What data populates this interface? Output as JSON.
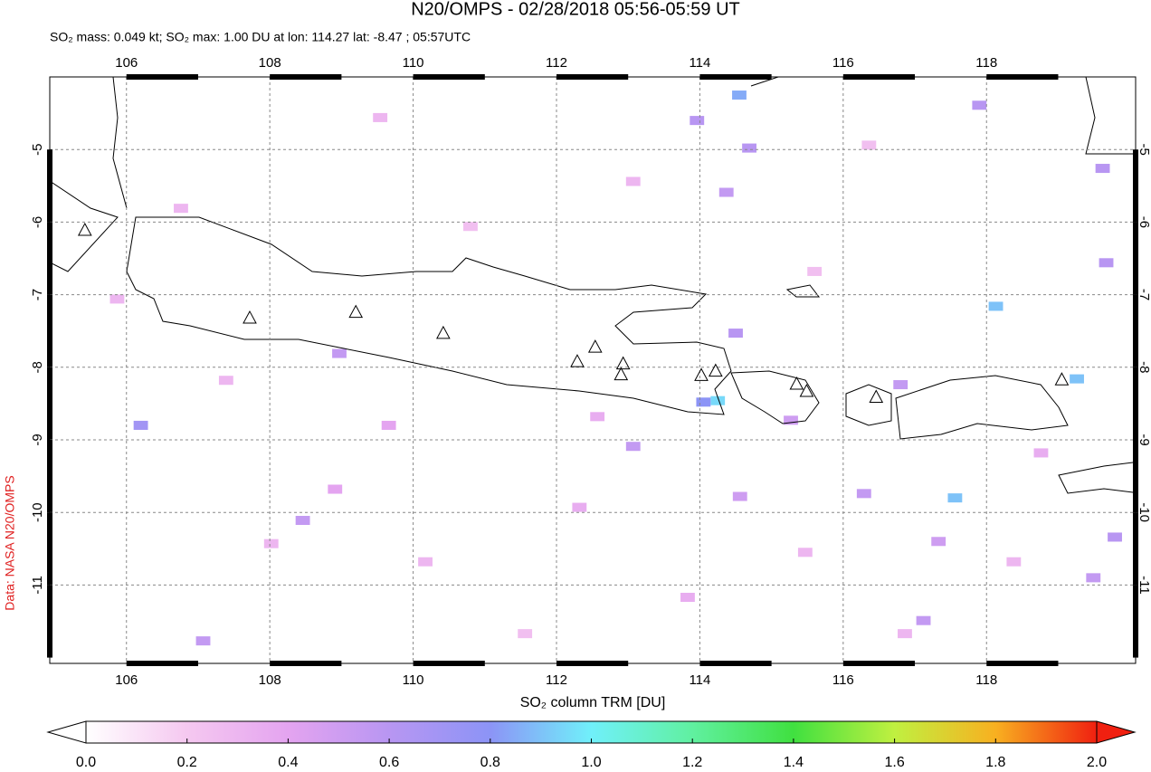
{
  "chart_data": {
    "type": "map",
    "title": "N20/OMPS - 02/28/2018 05:56-05:59 UT",
    "subtitle": "SO₂ mass: 0.049 kt; SO₂ max: 1.00 DU at lon: 114.27 lat: -8.47 ; 05:57UTC",
    "credit": "Data: NASA N20/OMPS",
    "colorbar_label": "SO₂ column TRM [DU]",
    "xlim": [
      104.93,
      120.08
    ],
    "ylim": [
      -12.08,
      -4.0
    ],
    "xticks": [
      106,
      108,
      110,
      112,
      114,
      116,
      118
    ],
    "yticks": [
      -5,
      -6,
      -7,
      -8,
      -9,
      -10,
      -11
    ],
    "grid": true,
    "clim": [
      0,
      2
    ],
    "cticks": [
      {
        "value": 0,
        "label": "0.0"
      },
      {
        "value": 0.2,
        "label": "0.2"
      },
      {
        "value": 0.4,
        "label": "0.4"
      },
      {
        "value": 0.6,
        "label": "0.6"
      },
      {
        "value": 0.8,
        "label": "0.8"
      },
      {
        "value": 1,
        "label": "1.0"
      },
      {
        "value": 1.2,
        "label": "1.2"
      },
      {
        "value": 1.4,
        "label": "1.4"
      },
      {
        "value": 1.6,
        "label": "1.6"
      },
      {
        "value": 1.8,
        "label": "1.8"
      },
      {
        "value": 2,
        "label": "2.0"
      }
    ],
    "colorscale": [
      "#ffffff",
      "#f5c8f0",
      "#e4a4f0",
      "#b896f2",
      "#8c94f6",
      "#70f0fa",
      "#60f0a0",
      "#40e040",
      "#c0f040",
      "#f8b020",
      "#f02010"
    ],
    "pixels": {
      "lon": [
        113.96,
        114.69,
        114.37,
        114.5,
        117.9,
        119.67,
        116.8,
        116.29,
        119.79,
        119.49,
        117.12,
        113.07,
        108.46,
        107.07,
        108.97,
        114.56,
        115.27,
        117.33,
        114.55,
        118.13,
        119.26,
        117.56,
        114.25,
        114.05,
        106.2,
        119.62,
        109.54,
        108.02,
        110.8,
        112.32,
        113.07,
        115.6,
        116.86,
        118.76,
        107.39,
        111.56,
        108.91,
        110.17,
        105.87,
        116.36,
        118.38,
        112.57,
        115.47,
        106.76,
        109.66,
        113.83
      ],
      "lat": [
        -4.6,
        -4.98,
        -5.59,
        -7.53,
        -4.39,
        -6.56,
        -8.24,
        -9.74,
        -10.34,
        -10.9,
        -11.49,
        -9.09,
        -10.11,
        -11.77,
        -7.81,
        -9.78,
        -8.73,
        -10.4,
        -4.25,
        -7.16,
        -8.16,
        -9.8,
        -8.46,
        -8.48,
        -8.8,
        -5.26,
        -4.56,
        -10.43,
        -6.06,
        -9.93,
        -5.44,
        -6.68,
        -11.67,
        -9.18,
        -8.18,
        -11.67,
        -9.68,
        -10.68,
        -7.06,
        -4.94,
        -10.68,
        -8.68,
        -10.55,
        -5.81,
        -8.8,
        -11.17
      ],
      "value": [
        0.6,
        0.6,
        0.55,
        0.6,
        0.6,
        0.6,
        0.55,
        0.55,
        0.6,
        0.55,
        0.55,
        0.55,
        0.55,
        0.55,
        0.55,
        0.5,
        0.5,
        0.5,
        0.85,
        0.9,
        0.9,
        0.9,
        0.95,
        0.8,
        0.7,
        0.6,
        0.3,
        0.3,
        0.25,
        0.35,
        0.3,
        0.25,
        0.3,
        0.35,
        0.3,
        0.25,
        0.4,
        0.3,
        0.3,
        0.25,
        0.3,
        0.35,
        0.3,
        0.3,
        0.4,
        0.35
      ]
    },
    "volcanoes": {
      "lon": [
        105.42,
        107.72,
        109.2,
        110.42,
        112.29,
        112.54,
        112.93,
        112.9,
        114.02,
        114.22,
        115.35,
        115.49,
        116.46,
        119.05
      ],
      "lat": [
        -6.12,
        -7.33,
        -7.25,
        -7.54,
        -7.93,
        -7.73,
        -7.96,
        -8.11,
        -8.12,
        -8.06,
        -8.24,
        -8.34,
        -8.42,
        -8.18
      ]
    }
  }
}
